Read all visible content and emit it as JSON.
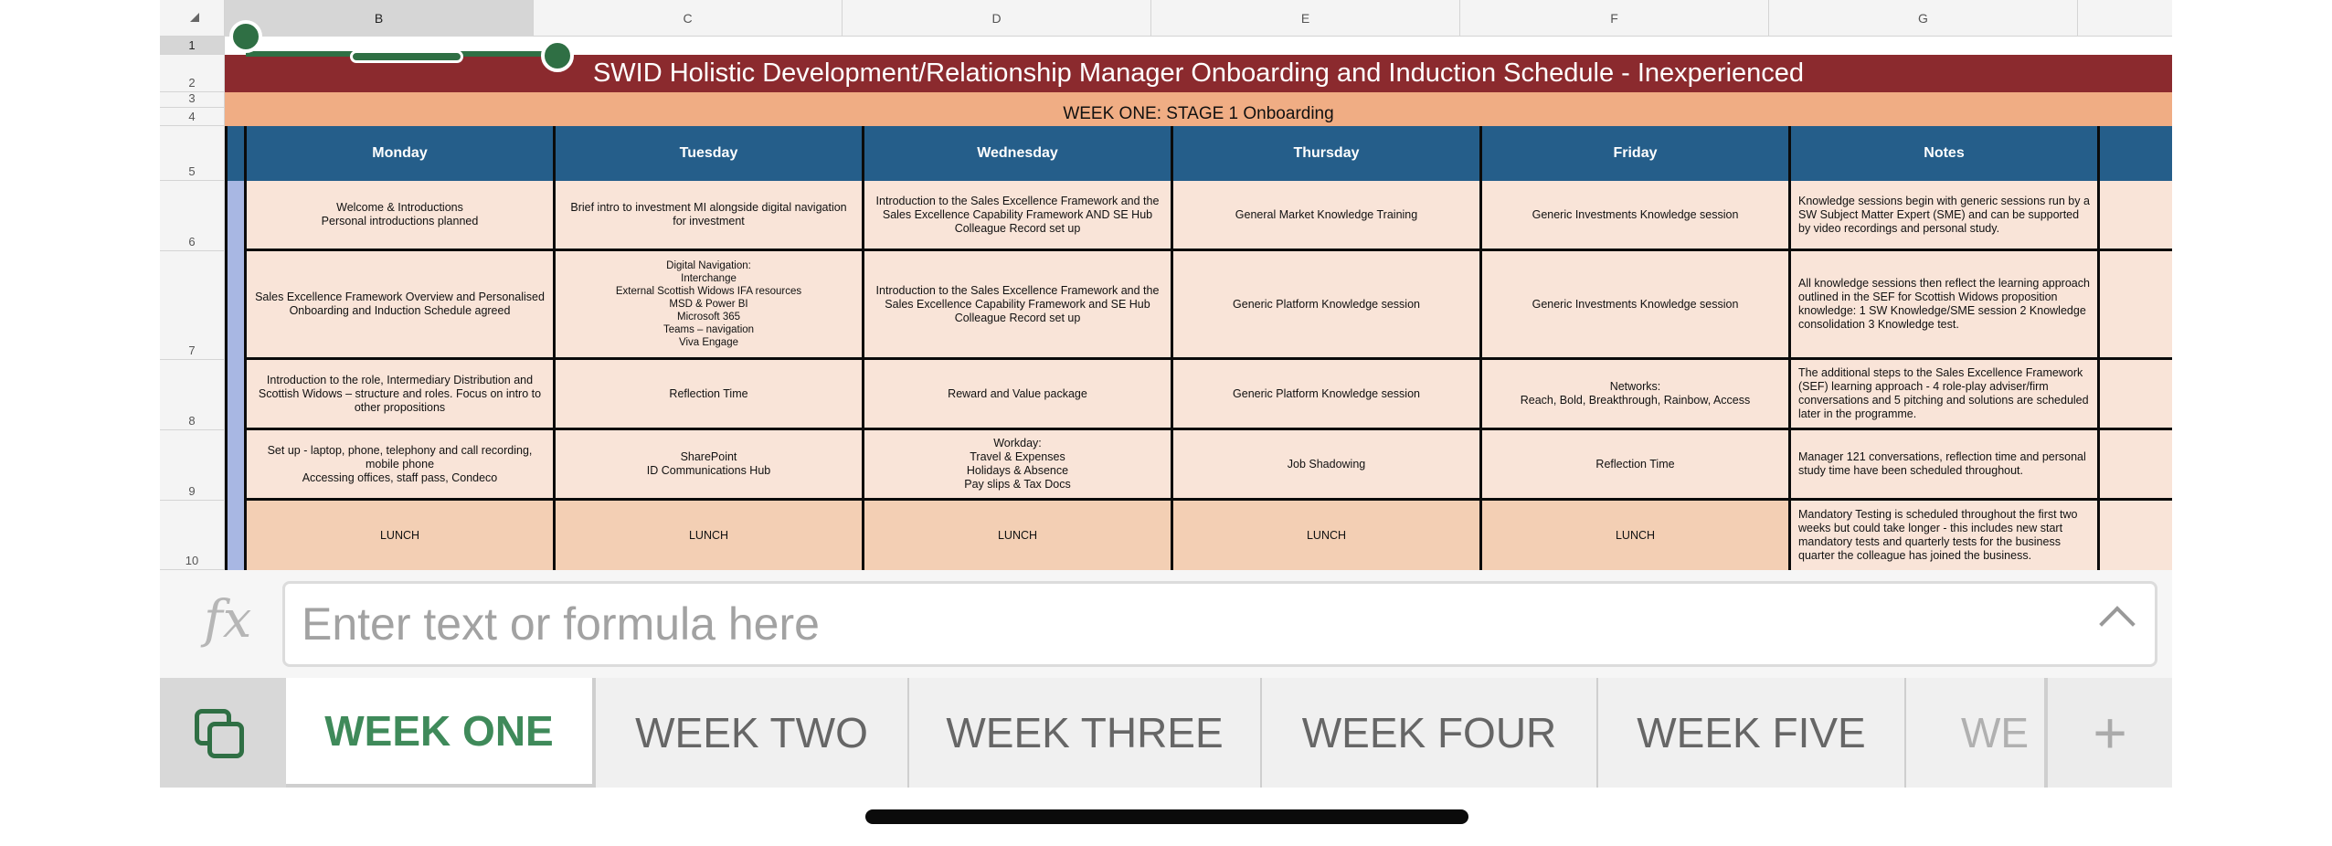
{
  "sheet": {
    "columns": [
      "B",
      "C",
      "D",
      "E",
      "F",
      "G"
    ],
    "rows": [
      "1",
      "2",
      "3",
      "4",
      "5",
      "6",
      "7",
      "8",
      "9",
      "10"
    ],
    "title": "SWID Holistic Development/Relationship Manager Onboarding and Induction Schedule - Inexperienced",
    "week_label": "WEEK ONE:  STAGE 1 Onboarding",
    "day_headers": [
      "Monday",
      "Tuesday",
      "Wednesday",
      "Thursday",
      "Friday",
      "Notes"
    ],
    "body_rows": [
      [
        "Welcome & Introductions\nPersonal introductions planned",
        "Brief intro to investment MI alongside digital navigation for investment",
        "Introduction to the Sales Excellence Framework and the Sales Excellence Capability Framework AND SE Hub Colleague Record set up",
        "General Market Knowledge Training",
        "Generic Investments Knowledge session",
        "Knowledge sessions begin with generic sessions run by a SW Subject Matter Expert (SME) and can be supported by video recordings and personal study."
      ],
      [
        "Sales Excellence Framework Overview and Personalised Onboarding and Induction Schedule agreed",
        "Digital Navigation:\nInterchange\nExternal Scottish Widows IFA resources\nMSD & Power BI\nMicrosoft 365\nTeams – navigation\nViva Engage",
        "Introduction to the Sales Excellence Framework and the Sales Excellence Capability Framework and SE Hub Colleague Record set up",
        "Generic Platform Knowledge session",
        "Generic Investments Knowledge session",
        "All knowledge sessions then reflect the learning approach outlined in the SEF for Scottish Widows proposition knowledge: 1 SW Knowledge/SME session 2 Knowledge consolidation 3 Knowledge test."
      ],
      [
        "Introduction to the role, Intermediary Distribution and Scottish Widows – structure and roles. Focus on intro to other propositions",
        "Reflection Time",
        "Reward and Value package",
        "Generic Platform Knowledge session",
        "Networks:\nReach, Bold, Breakthrough, Rainbow, Access",
        "The additional steps to the Sales Excellence Framework (SEF) learning approach - 4 role-play adviser/firm conversations and 5 pitching and solutions are scheduled later in the programme."
      ],
      [
        "Set up - laptop, phone, telephony and call recording, mobile phone\nAccessing offices, staff pass, Condeco",
        "SharePoint\nID Communications Hub",
        "Workday:\nTravel & Expenses\nHolidays & Absence\nPay slips & Tax Docs",
        "Job Shadowing",
        "Reflection Time",
        "Manager 121 conversations, reflection time and personal study time have been scheduled throughout."
      ],
      [
        "LUNCH",
        "LUNCH",
        "LUNCH",
        "LUNCH",
        "LUNCH",
        "Mandatory Testing is scheduled throughout the first two weeks but could take longer - this includes new start mandatory tests and quarterly tests for the business quarter the colleague has joined the business."
      ]
    ]
  },
  "formula_bar": {
    "icon": "fx-icon",
    "fx_label": "fx",
    "placeholder": "Enter text or formula here"
  },
  "tabs": [
    "WEEK ONE",
    "WEEK TWO",
    "WEEK THREE",
    "WEEK FOUR",
    "WEEK FIVE",
    "WE"
  ],
  "add_tab_label": "+",
  "colors": {
    "title_bg": "#8b2a2e",
    "subtitle_bg": "#f0ad84",
    "header_bg": "#255e8a",
    "cell_bg": "#f9e4d8",
    "lunch_bg": "#f3cfb4",
    "accent": "#2f6f44"
  }
}
